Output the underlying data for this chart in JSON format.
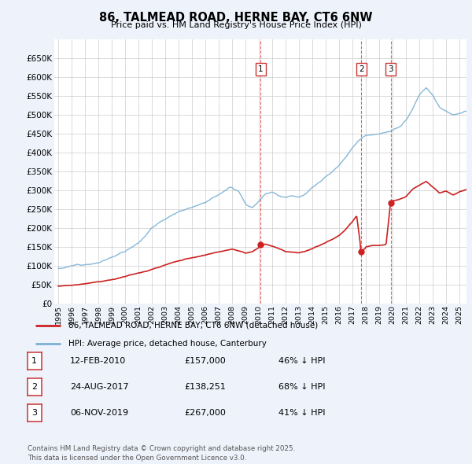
{
  "title": "86, TALMEAD ROAD, HERNE BAY, CT6 6NW",
  "subtitle": "Price paid vs. HM Land Registry's House Price Index (HPI)",
  "background_color": "#eef2fb",
  "plot_bg_color": "#ffffff",
  "hpi_color": "#7ab0d4",
  "price_color": "#cc2222",
  "ylim": [
    0,
    700000
  ],
  "yticks": [
    0,
    50000,
    100000,
    150000,
    200000,
    250000,
    300000,
    350000,
    400000,
    450000,
    500000,
    550000,
    600000,
    650000
  ],
  "xlim_start": 1994.7,
  "xlim_end": 2025.5,
  "legend_entries": [
    "86, TALMEAD ROAD, HERNE BAY, CT6 6NW (detached house)",
    "HPI: Average price, detached house, Canterbury"
  ],
  "transactions": [
    {
      "num": 1,
      "date": "12-FEB-2010",
      "price": 157000,
      "pct": "46%",
      "dir": "↓",
      "x": 2010.11
    },
    {
      "num": 2,
      "date": "24-AUG-2017",
      "price": 138251,
      "pct": "68%",
      "dir": "↓",
      "x": 2017.64
    },
    {
      "num": 3,
      "date": "06-NOV-2019",
      "price": 267000,
      "pct": "41%",
      "dir": "↓",
      "x": 2019.85
    }
  ],
  "footer": "Contains HM Land Registry data © Crown copyright and database right 2025.\nThis data is licensed under the Open Government Licence v3.0."
}
